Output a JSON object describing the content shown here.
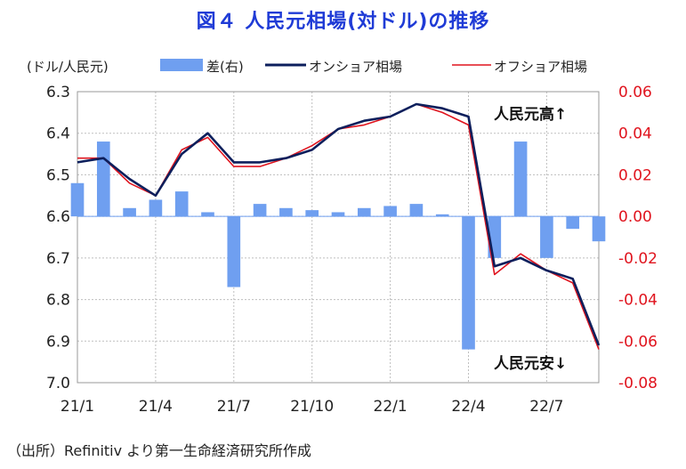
{
  "title": "図４ 人民元相場(対ドル)の推移",
  "source": "（出所）Refinitiv より第一生命経済研究所作成",
  "colors": {
    "onshore": "#0d1f5c",
    "offshore": "#e0141e",
    "diff": "#6f9ff0",
    "right_axis": "#e0141e",
    "grid": "#bfbfbf"
  },
  "chart_data": {
    "type": "line",
    "left_axis": {
      "label": "(ドル/人民元)",
      "ylim": [
        6.3,
        7.0
      ],
      "ticks": [
        "6.3",
        "6.4",
        "6.5",
        "6.6",
        "6.7",
        "6.8",
        "6.9",
        "7.0"
      ],
      "inverted": true
    },
    "right_axis": {
      "ylim": [
        0.06,
        -0.08
      ],
      "ticks": [
        "0.06",
        "0.04",
        "0.02",
        "0.00",
        "-0.02",
        "-0.04",
        "-0.06",
        "-0.08"
      ]
    },
    "x_ticks": [
      "21/1",
      "21/4",
      "21/7",
      "21/10",
      "22/1",
      "22/4",
      "22/7"
    ],
    "legend": [
      "差(右)",
      "オンショア相場",
      "オフショア相場"
    ],
    "annotations": [
      "人民元高↑",
      "人民元安↓"
    ],
    "series": [
      {
        "name": "オンショア相場",
        "x": [
          "21/01",
          "21/02",
          "21/03",
          "21/04",
          "21/05",
          "21/06",
          "21/07",
          "21/08",
          "21/09",
          "21/10",
          "21/11",
          "21/12",
          "22/01",
          "22/02",
          "22/03",
          "22/04",
          "22/05",
          "22/06",
          "22/07",
          "22/08",
          "22/09"
        ],
        "values": [
          6.47,
          6.46,
          6.51,
          6.55,
          6.45,
          6.4,
          6.47,
          6.47,
          6.46,
          6.44,
          6.39,
          6.37,
          6.36,
          6.33,
          6.34,
          6.36,
          6.72,
          6.7,
          6.73,
          6.75,
          6.91
        ]
      },
      {
        "name": "オフショア相場",
        "x": [
          "21/01",
          "21/02",
          "21/03",
          "21/04",
          "21/05",
          "21/06",
          "21/07",
          "21/08",
          "21/09",
          "21/10",
          "21/11",
          "21/12",
          "22/01",
          "22/02",
          "22/03",
          "22/04",
          "22/05",
          "22/06",
          "22/07",
          "22/08",
          "22/09"
        ],
        "values": [
          6.46,
          6.46,
          6.52,
          6.55,
          6.44,
          6.41,
          6.48,
          6.48,
          6.46,
          6.43,
          6.39,
          6.38,
          6.36,
          6.33,
          6.35,
          6.38,
          6.74,
          6.69,
          6.73,
          6.76,
          6.92
        ]
      },
      {
        "name": "差(右)",
        "x": [
          "21/01",
          "21/02",
          "21/03",
          "21/04",
          "21/05",
          "21/06",
          "21/07",
          "21/08",
          "21/09",
          "21/10",
          "21/11",
          "21/12",
          "22/01",
          "22/02",
          "22/03",
          "22/04",
          "22/05",
          "22/06",
          "22/07",
          "22/08",
          "22/09"
        ],
        "values": [
          0.016,
          0.036,
          0.004,
          0.008,
          0.012,
          0.002,
          -0.034,
          0.006,
          0.004,
          0.003,
          0.002,
          0.004,
          0.005,
          0.006,
          0.001,
          -0.064,
          -0.02,
          0.036,
          -0.02,
          -0.006,
          -0.012
        ]
      }
    ]
  }
}
